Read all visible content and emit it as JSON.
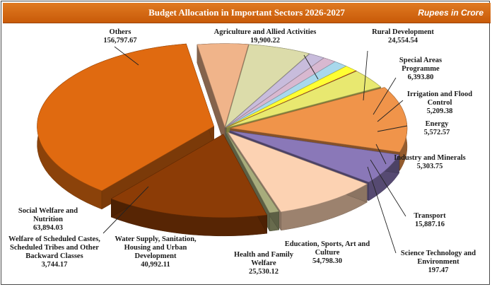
{
  "header": {
    "title": "Budget Allocation in Important Sectors 2026-2027",
    "unit": "Rupees in Crore"
  },
  "chart_data": {
    "type": "pie",
    "title": "Budget Allocation in Important Sectors 2026-2027",
    "subtitle": "Rupees in Crore",
    "slices": [
      {
        "name": "Agriculture and Allied Activities",
        "value": 19900.22,
        "value_label": "19,900.22",
        "color": "#f0b48a"
      },
      {
        "name": "Rural Development",
        "value": 24554.54,
        "value_label": "24,554.54",
        "color": "#dcdcaa"
      },
      {
        "name": "Special Areas Programme",
        "value": 6393.8,
        "value_label": "6,393.80",
        "color": "#c8bcdc"
      },
      {
        "name": "Irrigation and Flood Control",
        "value": 5209.38,
        "value_label": "5,209.38",
        "color": "#d8b8d0"
      },
      {
        "name": "Energy",
        "value": 5572.57,
        "value_label": "5,572.57",
        "color": "#a8d8ec"
      },
      {
        "name": "Industry and Minerals",
        "value": 5303.75,
        "value_label": "5,303.75",
        "color": "#ffff33"
      },
      {
        "name": "Science Technology and Environment",
        "value": 197.47,
        "value_label": "197.47",
        "color": "#d01010"
      },
      {
        "name": "Transport",
        "value": 15887.16,
        "value_label": "15,887.16",
        "color": "#e8e870"
      },
      {
        "name": "Education, Sports, Art and Culture",
        "value": 54798.3,
        "value_label": "54,798.30",
        "color": "#f0944a"
      },
      {
        "name": "Health and Family Welfare",
        "value": 25530.12,
        "value_label": "25,530.12",
        "color": "#8a78b8"
      },
      {
        "name": "Water Supply, Sanitation, Housing and Urban Development",
        "value": 40992.11,
        "value_label": "40,992.11",
        "color": "#fcd2b2"
      },
      {
        "name": "Welfare of Scheduled Castes, Scheduled Tribes and Other Backward Classes",
        "value": 3744.17,
        "value_label": "3,744.17",
        "color": "#a8ac7c"
      },
      {
        "name": "Social Welfare and Nutrition",
        "value": 63894.03,
        "value_label": "63,894.03",
        "color": "#8c3c06"
      },
      {
        "name": "Others",
        "value": 156797.67,
        "value_label": "156,797.67",
        "color": "#e06a10"
      }
    ]
  },
  "labels": {
    "agri_name": "Agriculture and Allied Activities",
    "rural_name": "Rural Development",
    "special_name": "Special Areas Programme",
    "irrigation_name": "Irrigation and Flood Control",
    "energy_name": "Energy",
    "industry_name": "Industry and Minerals",
    "transport_name": "Transport",
    "science_name": "Science Technology and Environment",
    "education_name": "Education, Sports, Art and Culture",
    "health_name": "Health and Family Welfare",
    "water_name": "Water Supply, Sanitation, Housing and Urban Development",
    "welfare_sc_name": "Welfare of Scheduled Castes, Scheduled Tribes and Other Backward Classes",
    "social_name": "Social Welfare and Nutrition",
    "others_name": "Others"
  }
}
